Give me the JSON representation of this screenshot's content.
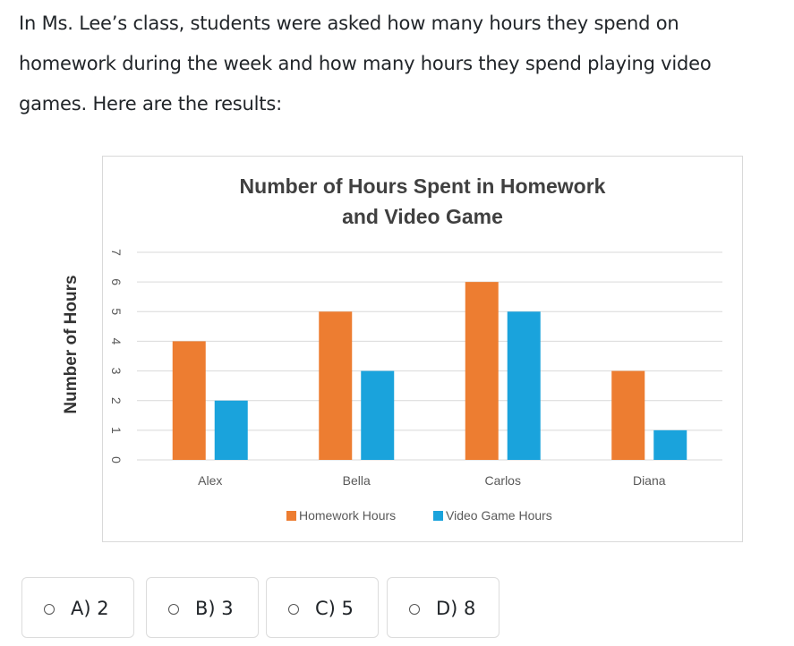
{
  "question": {
    "text": "In Ms. Lee’s class, students were asked how many hours they spend on homework during the week and how many hours they spend playing video games. Here are the results:"
  },
  "chart_data": {
    "type": "bar",
    "title_line1": "Number of Hours Spent in Homework",
    "title_line2": "and Video Game",
    "xlabel": "",
    "ylabel": "Number of Hours",
    "categories": [
      "Alex",
      "Bella",
      "Carlos",
      "Diana"
    ],
    "series": [
      {
        "name": "Homework Hours",
        "values": [
          4,
          5,
          6,
          3
        ],
        "color": "#ED7D31"
      },
      {
        "name": "Video Game Hours",
        "values": [
          2,
          3,
          5,
          1
        ],
        "color": "#1AA3DC"
      }
    ],
    "ylim": [
      0,
      7
    ],
    "yticks": [
      "0",
      "1",
      "2",
      "3",
      "4",
      "5",
      "6",
      "7"
    ],
    "grid": true,
    "legend": "bottom"
  },
  "choices": [
    {
      "label": "A) 2"
    },
    {
      "label": "B) 3"
    },
    {
      "label": "C) 5"
    },
    {
      "label": "D) 8"
    }
  ]
}
